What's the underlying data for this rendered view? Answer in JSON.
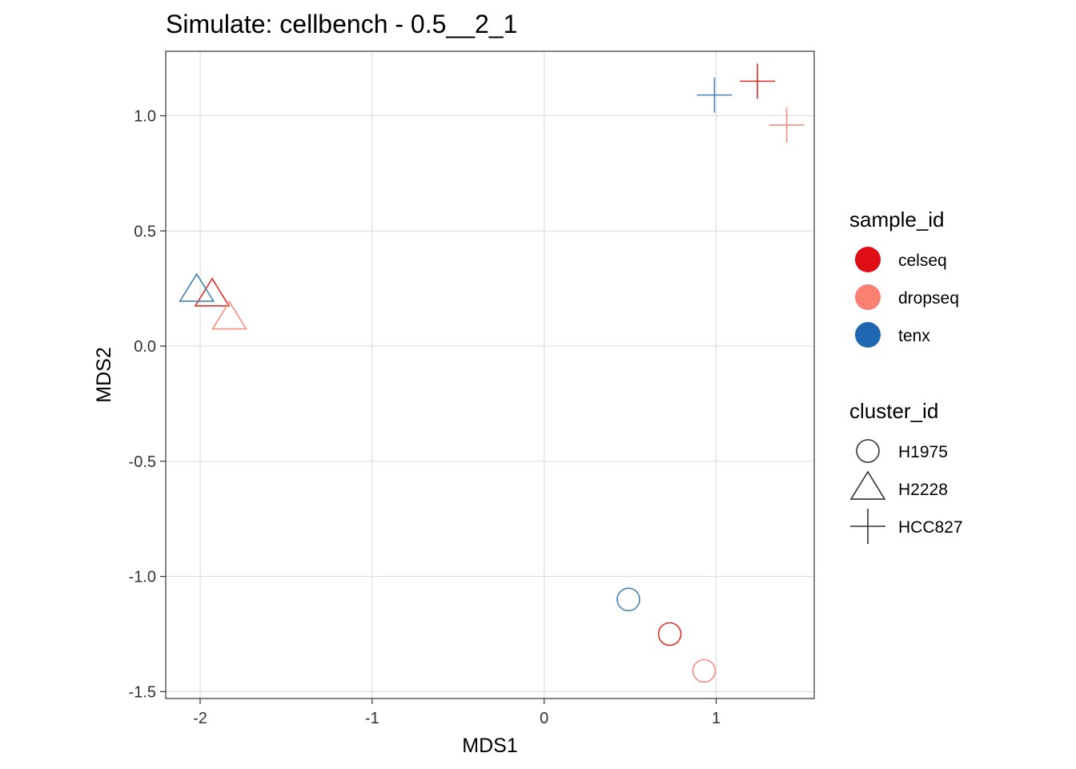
{
  "chart_data": {
    "type": "scatter",
    "title": "Simulate: cellbench - 0.5__2_1",
    "xlabel": "MDS1",
    "ylabel": "MDS2",
    "xlim": [
      -2.2,
      1.57
    ],
    "ylim": [
      -1.53,
      1.28
    ],
    "x_ticks": [
      -2,
      -1,
      0,
      1
    ],
    "x_tick_labels": [
      "-2",
      "-1",
      "0",
      "1"
    ],
    "y_ticks": [
      1.0,
      0.5,
      0.0,
      -0.5,
      -1.0,
      -1.5
    ],
    "y_tick_labels": [
      "1.0",
      "0.5",
      "0.0",
      "-0.5",
      "-1.0",
      "-1.5"
    ],
    "grid": true,
    "legend_placement": "right",
    "sample_legend": {
      "title": "sample_id",
      "entries": [
        {
          "label": "celseq",
          "color": "#de0d16"
        },
        {
          "label": "dropseq",
          "color": "#fb8072"
        },
        {
          "label": "tenx",
          "color": "#1f68b1"
        }
      ]
    },
    "cluster_legend": {
      "title": "cluster_id",
      "entries": [
        {
          "label": "H1975",
          "shape": "circle"
        },
        {
          "label": "H2228",
          "shape": "triangle"
        },
        {
          "label": "HCC827",
          "shape": "plus"
        }
      ]
    },
    "points": [
      {
        "sample": "celseq",
        "cluster": "H1975",
        "x": 0.73,
        "y": -1.25
      },
      {
        "sample": "dropseq",
        "cluster": "H1975",
        "x": 0.93,
        "y": -1.41
      },
      {
        "sample": "tenx",
        "cluster": "H1975",
        "x": 0.49,
        "y": -1.1
      },
      {
        "sample": "celseq",
        "cluster": "H2228",
        "x": -1.93,
        "y": 0.22
      },
      {
        "sample": "dropseq",
        "cluster": "H2228",
        "x": -1.83,
        "y": 0.12
      },
      {
        "sample": "tenx",
        "cluster": "H2228",
        "x": -2.02,
        "y": 0.24
      },
      {
        "sample": "celseq",
        "cluster": "HCC827",
        "x": 1.24,
        "y": 1.15
      },
      {
        "sample": "dropseq",
        "cluster": "HCC827",
        "x": 1.41,
        "y": 0.96
      },
      {
        "sample": "tenx",
        "cluster": "HCC827",
        "x": 0.99,
        "y": 1.09
      }
    ],
    "point_colors": {
      "celseq": "#de2d26",
      "dropseq": "#fb8c80",
      "tenx": "#4682b4"
    }
  }
}
